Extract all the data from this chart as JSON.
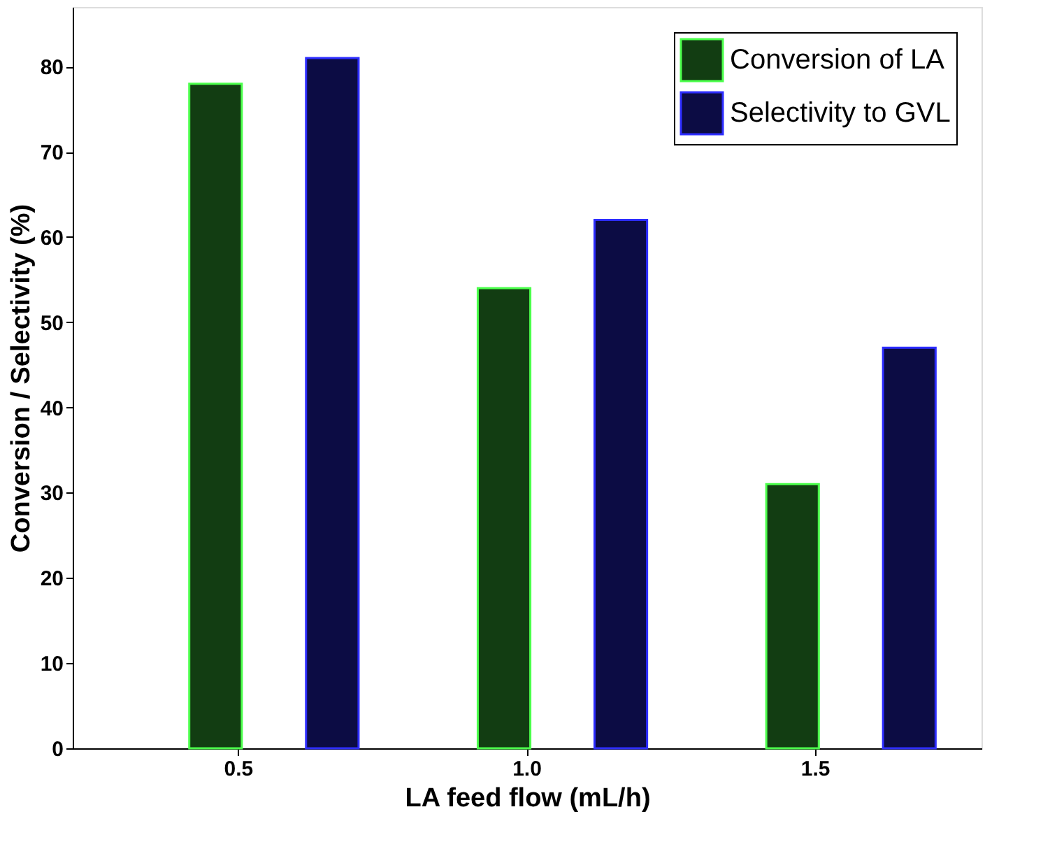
{
  "chart_data": {
    "type": "bar",
    "xlabel": "LA feed flow (mL/h)",
    "ylabel": "Conversion / Selectivity (%)",
    "categories": [
      "0.5",
      "1.0",
      "1.5"
    ],
    "series": [
      {
        "name": "Conversion of LA",
        "color": "#123d12",
        "values": [
          78,
          54,
          31
        ]
      },
      {
        "name": "Selectivity to GVL",
        "color": "#0c0c44",
        "values": [
          81,
          62,
          47
        ]
      }
    ],
    "ylim": [
      0,
      87
    ],
    "yticks": [
      0,
      10,
      20,
      30,
      40,
      50,
      60,
      70,
      80
    ],
    "grid": false,
    "legend": "top right"
  }
}
